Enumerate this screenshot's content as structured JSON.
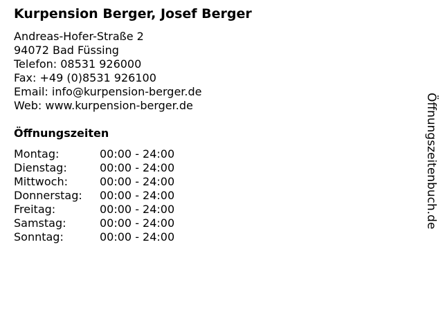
{
  "title": "Kurpension Berger, Josef Berger",
  "address": {
    "street": "Andreas-Hofer-Straße 2",
    "city": "94072 Bad Füssing",
    "phone": "Telefon: 08531 926000",
    "fax": "Fax: +49 (0)8531 926100",
    "email": "Email: info@kurpension-berger.de",
    "web": "Web: www.kurpension-berger.de"
  },
  "hours_title": "Öffnungszeiten",
  "hours": [
    {
      "day": "Montag:",
      "time": "00:00 - 24:00"
    },
    {
      "day": "Dienstag:",
      "time": "00:00 - 24:00"
    },
    {
      "day": "Mittwoch:",
      "time": "00:00 - 24:00"
    },
    {
      "day": "Donnerstag:",
      "time": "00:00 - 24:00"
    },
    {
      "day": "Freitag:",
      "time": "00:00 - 24:00"
    },
    {
      "day": "Samstag:",
      "time": "00:00 - 24:00"
    },
    {
      "day": "Sonntag:",
      "time": "00:00 - 24:00"
    }
  ],
  "side_label": "Öffnungszeitenbuch.de"
}
